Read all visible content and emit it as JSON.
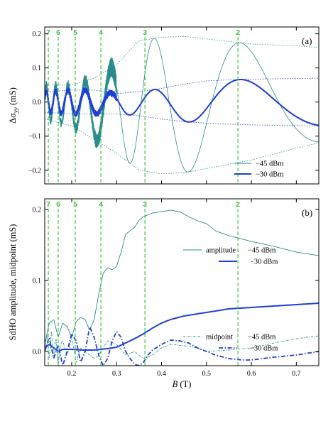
{
  "colors": {
    "teal": "#2a8c8c",
    "blue": "#1f3fd6",
    "green": "#2fbf2f",
    "frame": "#000000"
  },
  "chart_data": [
    {
      "type": "line",
      "panel": "(a)",
      "ylabel_main": "Δσ",
      "ylabel_sub": "yy",
      "ylabel_unit": " (mS)",
      "xlim": [
        0.14,
        0.75
      ],
      "ylim": [
        -0.24,
        0.22
      ],
      "x_ticks": [
        0.2,
        0.3,
        0.4,
        0.5,
        0.6,
        0.7
      ],
      "y_ticks": [
        -0.2,
        -0.1,
        0.0,
        0.1,
        0.2
      ],
      "y_tick_labels": [
        "−0.2",
        "−0.1",
        "0.0",
        "0.1",
        "0.2"
      ],
      "filling_factor_lines": [
        {
          "nu": "7",
          "B": 0.148
        },
        {
          "nu": "6",
          "B": 0.17
        },
        {
          "nu": "5",
          "B": 0.208
        },
        {
          "nu": "4",
          "B": 0.265
        },
        {
          "nu": "3",
          "B": 0.363
        },
        {
          "nu": "2",
          "B": 0.57
        }
      ],
      "legend_position": "bottom-right",
      "series": [
        {
          "name": "−45 dBm",
          "style": "thin-teal",
          "envelope": {
            "B": [
              0.14,
              0.2,
              0.25,
              0.3,
              0.35,
              0.4,
              0.45,
              0.5,
              0.55,
              0.6,
              0.65,
              0.7,
              0.75
            ],
            "amp": [
              0.05,
              0.06,
              0.09,
              0.13,
              0.19,
              0.2,
              0.2,
              0.19,
              0.18,
              0.17,
              0.16,
              0.15,
              0.14
            ]
          },
          "midpoint": {
            "B": [
              0.14,
              0.2,
              0.25,
              0.3,
              0.35,
              0.4,
              0.5,
              0.6,
              0.7,
              0.75
            ],
            "mid": [
              0.0,
              -0.01,
              -0.02,
              -0.02,
              -0.01,
              -0.01,
              -0.005,
              0.0,
              0.015,
              0.02
            ]
          }
        },
        {
          "name": "−30 dBm",
          "style": "thick-blue",
          "envelope": {
            "B": [
              0.14,
              0.2,
              0.25,
              0.3,
              0.35,
              0.4,
              0.45,
              0.5,
              0.55,
              0.6,
              0.65,
              0.7,
              0.75
            ],
            "amp": [
              0.03,
              0.035,
              0.035,
              0.03,
              0.035,
              0.045,
              0.055,
              0.062,
              0.065,
              0.067,
              0.068,
              0.069,
              0.07
            ]
          },
          "midpoint": {
            "B": [
              0.14,
              0.2,
              0.25,
              0.3,
              0.35,
              0.4,
              0.5,
              0.6,
              0.7,
              0.75
            ],
            "mid": [
              0.0,
              0.0,
              0.0,
              -0.005,
              -0.005,
              -0.005,
              0.0,
              0.0,
              0.0,
              0.0
            ]
          }
        }
      ]
    },
    {
      "type": "line",
      "panel": "(b)",
      "ylabel": "SdHO amplitude, midpoint (mS)",
      "xlabel_main": "B",
      "xlabel_unit": " (T)",
      "xlim": [
        0.14,
        0.75
      ],
      "ylim": [
        -0.02,
        0.215
      ],
      "x_ticks": [
        0.2,
        0.3,
        0.4,
        0.5,
        0.6,
        0.7
      ],
      "x_tick_labels": [
        "0.2",
        "0.3",
        "0.4",
        "0.5",
        "0.6",
        "0.7"
      ],
      "y_ticks": [
        0.0,
        0.1,
        0.2
      ],
      "y_tick_labels": [
        "0.0",
        "0.1",
        "0.2"
      ],
      "filling_factor_lines": [
        {
          "nu": "7",
          "B": 0.148
        },
        {
          "nu": "6",
          "B": 0.17
        },
        {
          "nu": "5",
          "B": 0.208
        },
        {
          "nu": "4",
          "B": 0.265
        },
        {
          "nu": "3",
          "B": 0.363
        },
        {
          "nu": "2",
          "B": 0.57
        }
      ],
      "legend": {
        "amplitude_label": "amplitude",
        "midpoint_label": "midpoint",
        "minus45": "−45 dBm",
        "minus30": "−30 dBm"
      },
      "series": [
        {
          "name": "amplitude −45 dBm",
          "style": "thin-teal",
          "B": [
            0.14,
            0.15,
            0.16,
            0.17,
            0.18,
            0.19,
            0.2,
            0.21,
            0.22,
            0.23,
            0.24,
            0.25,
            0.26,
            0.27,
            0.28,
            0.29,
            0.3,
            0.31,
            0.32,
            0.33,
            0.34,
            0.35,
            0.36,
            0.38,
            0.4,
            0.42,
            0.44,
            0.46,
            0.48,
            0.5,
            0.52,
            0.55,
            0.6,
            0.65,
            0.7,
            0.75
          ],
          "y": [
            0.01,
            0.04,
            0.045,
            0.02,
            0.04,
            0.035,
            0.02,
            0.042,
            0.048,
            0.045,
            0.03,
            0.045,
            0.08,
            0.11,
            0.118,
            0.115,
            0.12,
            0.14,
            0.165,
            0.17,
            0.175,
            0.185,
            0.19,
            0.195,
            0.197,
            0.199,
            0.197,
            0.19,
            0.184,
            0.18,
            0.17,
            0.163,
            0.155,
            0.148,
            0.14,
            0.135
          ]
        },
        {
          "name": "amplitude −30 dBm",
          "style": "thick-blue",
          "B": [
            0.14,
            0.15,
            0.16,
            0.17,
            0.18,
            0.2,
            0.22,
            0.25,
            0.28,
            0.3,
            0.32,
            0.34,
            0.36,
            0.38,
            0.4,
            0.42,
            0.45,
            0.5,
            0.55,
            0.6,
            0.65,
            0.7,
            0.75
          ],
          "y": [
            0.005,
            0.01,
            0.005,
            0.0,
            0.003,
            0.003,
            0.002,
            0.002,
            0.004,
            0.006,
            0.012,
            0.018,
            0.025,
            0.033,
            0.04,
            0.045,
            0.05,
            0.055,
            0.06,
            0.062,
            0.064,
            0.066,
            0.068
          ]
        },
        {
          "name": "midpoint −45 dBm",
          "style": "dotted-teal",
          "B": [
            0.14,
            0.145,
            0.15,
            0.155,
            0.16,
            0.165,
            0.17,
            0.175,
            0.18,
            0.19,
            0.2,
            0.21,
            0.22,
            0.23,
            0.24,
            0.25,
            0.26,
            0.27,
            0.28,
            0.3,
            0.32,
            0.34,
            0.36,
            0.38,
            0.4,
            0.42,
            0.45,
            0.48,
            0.5,
            0.55,
            0.6,
            0.65,
            0.7,
            0.75
          ],
          "y": [
            0.0,
            0.025,
            -0.01,
            0.03,
            -0.005,
            0.02,
            -0.02,
            0.01,
            0.015,
            -0.005,
            0.02,
            -0.015,
            0.005,
            0.0,
            -0.005,
            -0.01,
            -0.005,
            0.005,
            0.015,
            0.01,
            -0.005,
            0.0,
            -0.01,
            -0.005,
            0.005,
            0.01,
            0.008,
            0.005,
            0.0,
            0.002,
            0.005,
            0.012,
            0.018,
            0.022
          ]
        },
        {
          "name": "midpoint −30 dBm",
          "style": "dashdot-blue",
          "B": [
            0.14,
            0.15,
            0.16,
            0.17,
            0.18,
            0.19,
            0.2,
            0.21,
            0.22,
            0.23,
            0.24,
            0.25,
            0.26,
            0.27,
            0.28,
            0.29,
            0.3,
            0.31,
            0.32,
            0.33,
            0.34,
            0.35,
            0.36,
            0.37,
            0.38,
            0.4,
            0.42,
            0.44,
            0.46,
            0.48,
            0.5,
            0.52,
            0.55,
            0.58,
            0.6,
            0.65,
            0.7,
            0.75
          ],
          "y": [
            0.0,
            0.02,
            -0.01,
            0.01,
            -0.02,
            0.0,
            0.025,
            0.015,
            -0.015,
            0.0,
            0.035,
            0.02,
            -0.005,
            -0.02,
            -0.01,
            0.015,
            0.028,
            0.02,
            0.0,
            -0.01,
            -0.018,
            -0.02,
            -0.015,
            -0.005,
            0.002,
            0.01,
            0.016,
            0.015,
            0.012,
            0.005,
            0.0,
            -0.005,
            -0.01,
            -0.012,
            -0.012,
            -0.008,
            -0.005,
            0.0
          ]
        }
      ]
    }
  ]
}
